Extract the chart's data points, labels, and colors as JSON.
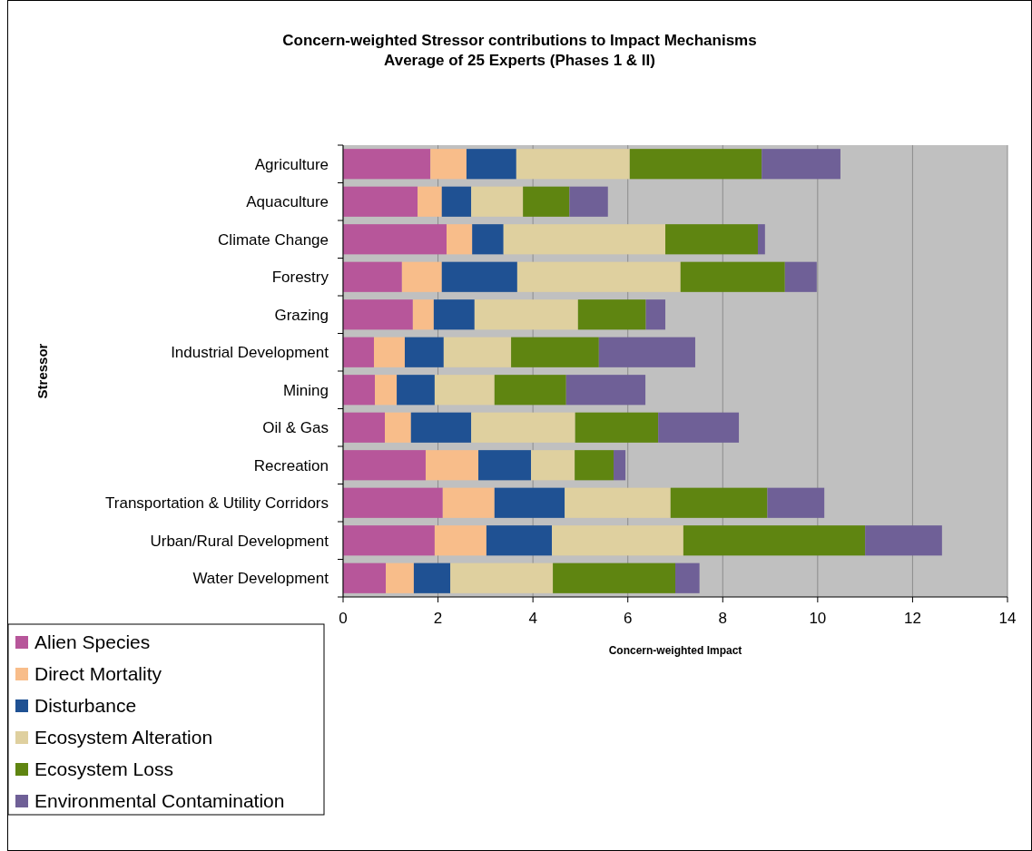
{
  "chart_data": {
    "type": "bar",
    "orientation": "horizontal",
    "stacked": true,
    "title": "Concern-weighted Stressor contributions to Impact Mechanisms\nAverage of 25 Experts (Phases 1 & II)",
    "xlabel": "Concern-weighted Impact",
    "ylabel": "Stressor",
    "categories": [
      "Agriculture",
      "Aquaculture",
      "Climate Change",
      "Forestry",
      "Grazing",
      "Industrial Development",
      "Mining",
      "Oil & Gas",
      "Recreation",
      "Transportation & Utility Corridors",
      "Urban/Rural Development",
      "Water Development"
    ],
    "series": [
      {
        "name": "Alien Species",
        "color": "#b7569a",
        "values": [
          1.84,
          1.57,
          2.18,
          1.24,
          1.47,
          0.65,
          0.67,
          0.88,
          1.74,
          2.1,
          1.93,
          0.9
        ]
      },
      {
        "name": "Direct Mortality",
        "color": "#f8bd8a",
        "values": [
          0.76,
          0.51,
          0.54,
          0.84,
          0.44,
          0.65,
          0.46,
          0.55,
          1.11,
          1.09,
          1.09,
          0.59
        ]
      },
      {
        "name": "Disturbance",
        "color": "#1f5193",
        "values": [
          1.05,
          0.62,
          0.66,
          1.59,
          0.86,
          0.82,
          0.8,
          1.27,
          1.11,
          1.48,
          1.38,
          0.77
        ]
      },
      {
        "name": "Ecosystem Alteration",
        "color": "#dfd09f",
        "values": [
          2.39,
          1.09,
          3.41,
          3.44,
          2.18,
          1.42,
          1.26,
          2.19,
          0.92,
          2.23,
          2.77,
          2.16
        ]
      },
      {
        "name": "Ecosystem Loss",
        "color": "#5f8511",
        "values": [
          2.78,
          0.98,
          1.95,
          2.2,
          1.43,
          1.85,
          1.51,
          1.75,
          0.82,
          2.04,
          3.83,
          2.58
        ]
      },
      {
        "name": "Environmental Contamination",
        "color": "#6f6097",
        "values": [
          1.66,
          0.81,
          0.15,
          0.67,
          0.41,
          2.03,
          1.67,
          1.7,
          0.25,
          1.2,
          1.62,
          0.51
        ]
      }
    ],
    "xlim": [
      0,
      14
    ],
    "xticks": [
      0,
      2,
      4,
      6,
      8,
      10,
      12,
      14
    ],
    "grid": "x",
    "legend": "bottom left"
  }
}
